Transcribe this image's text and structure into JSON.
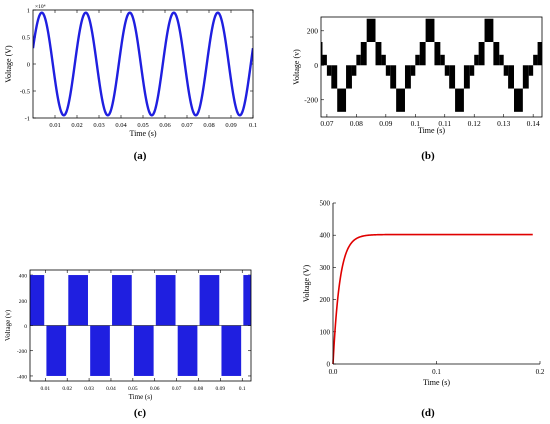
{
  "panels": {
    "a": {
      "tag": "(a)",
      "xlabel": "Time (s)",
      "ylabel": "Voltage (V)"
    },
    "b": {
      "tag": "(b)",
      "xlabel": "Time (s)",
      "ylabel": "Voltage (v)"
    },
    "c": {
      "tag": "(c)",
      "xlabel": "Time (s)",
      "ylabel": "Voltage (v)"
    },
    "d": {
      "tag": "(d)",
      "xlabel": "Time (s)",
      "ylabel": "Voltage (V)"
    }
  },
  "chart_data": [
    {
      "id": "a",
      "type": "line",
      "xlabel": "Time (s)",
      "ylabel": "Voltage (V)",
      "y_multiplier_label": "×10⁴",
      "xlim": [
        0,
        0.1
      ],
      "ylim": [
        -1,
        1
      ],
      "x_ticks": [
        "0.01",
        "0.02",
        "0.03",
        "0.04",
        "0.05",
        "0.06",
        "0.07",
        "0.08",
        "0.09",
        "0.1"
      ],
      "y_ticks": [
        "-1",
        "-0.5",
        "0",
        "0.5",
        "1"
      ],
      "series": [
        {
          "frequency_hz": 50,
          "amplitude": 0.95,
          "phase_deg": 18,
          "color": "#1f1fe0"
        }
      ],
      "grid": false,
      "legend": "none"
    },
    {
      "id": "b",
      "type": "line",
      "xlabel": "Time (s)",
      "ylabel": "Voltage (v)",
      "xlim": [
        0.068,
        0.143
      ],
      "ylim": [
        -300,
        280
      ],
      "x_ticks": [
        "0.07",
        "0.08",
        "0.09",
        "0.1",
        "0.11",
        "0.12",
        "0.13",
        "0.14"
      ],
      "y_ticks": [
        "-200",
        "0",
        "200"
      ],
      "series": [
        {
          "frequency_hz": 50,
          "color": "#000000",
          "levels_v": [
            -270,
            -135,
            0,
            135,
            270
          ]
        }
      ],
      "grid": false,
      "legend": "none"
    },
    {
      "id": "c",
      "type": "line",
      "xlabel": "Time (s)",
      "ylabel": "Voltage (v)",
      "xlim": [
        0.003,
        0.104
      ],
      "ylim": [
        -440,
        440
      ],
      "x_ticks": [
        "0.01",
        "0.02",
        "0.03",
        "0.04",
        "0.05",
        "0.06",
        "0.07",
        "0.08",
        "0.09",
        "0.1"
      ],
      "y_ticks": [
        "-400",
        "-200",
        "0",
        "200",
        "400"
      ],
      "series": [
        {
          "frequency_hz": 50,
          "amplitude_v": 400,
          "color": "#1f1fe0"
        }
      ],
      "grid": false,
      "legend": "none"
    },
    {
      "id": "d",
      "type": "line",
      "xlabel": "Time (s)",
      "ylabel": "Voltage (V)",
      "xlim": [
        0,
        0.2
      ],
      "ylim": [
        0,
        500
      ],
      "x_ticks": [
        "0.0",
        "0.1",
        "0.2"
      ],
      "y_ticks": [
        "0",
        "100",
        "200",
        "300",
        "400",
        "500"
      ],
      "series": [
        {
          "steady_state_v": 402,
          "end_time_s": 0.193,
          "color": "#e00000"
        }
      ],
      "grid": false,
      "legend": "none"
    }
  ]
}
